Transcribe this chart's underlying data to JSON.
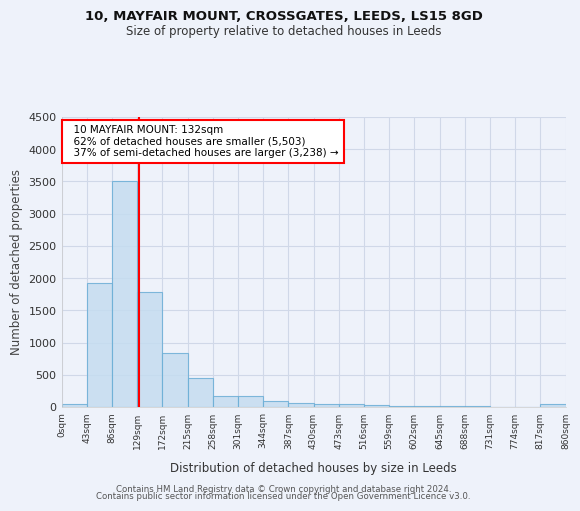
{
  "title1": "10, MAYFAIR MOUNT, CROSSGATES, LEEDS, LS15 8GD",
  "title2": "Size of property relative to detached houses in Leeds",
  "xlabel": "Distribution of detached houses by size in Leeds",
  "ylabel": "Number of detached properties",
  "property_size": 132,
  "annotation_line1": "10 MAYFAIR MOUNT: 132sqm",
  "annotation_line2": "62% of detached houses are smaller (5,503)",
  "annotation_line3": "37% of semi-detached houses are larger (3,238) →",
  "bins": [
    0,
    43,
    86,
    129,
    172,
    215,
    258,
    301,
    344,
    387,
    430,
    473,
    516,
    559,
    602,
    645,
    688,
    731,
    774,
    817,
    860
  ],
  "counts": [
    50,
    1930,
    3500,
    1780,
    840,
    450,
    175,
    175,
    100,
    65,
    50,
    40,
    30,
    20,
    15,
    10,
    8,
    5,
    3,
    50
  ],
  "bar_color": "#c5dcf0",
  "bar_edge_color": "#6baed6",
  "vline_x": 132,
  "vline_color": "red",
  "bg_color": "#eef2fa",
  "grid_color": "#d0d8e8",
  "ylim": [
    0,
    4500
  ],
  "xlim": [
    0,
    860
  ],
  "footer_line1": "Contains HM Land Registry data © Crown copyright and database right 2024.",
  "footer_line2": "Contains public sector information licensed under the Open Government Licence v3.0."
}
